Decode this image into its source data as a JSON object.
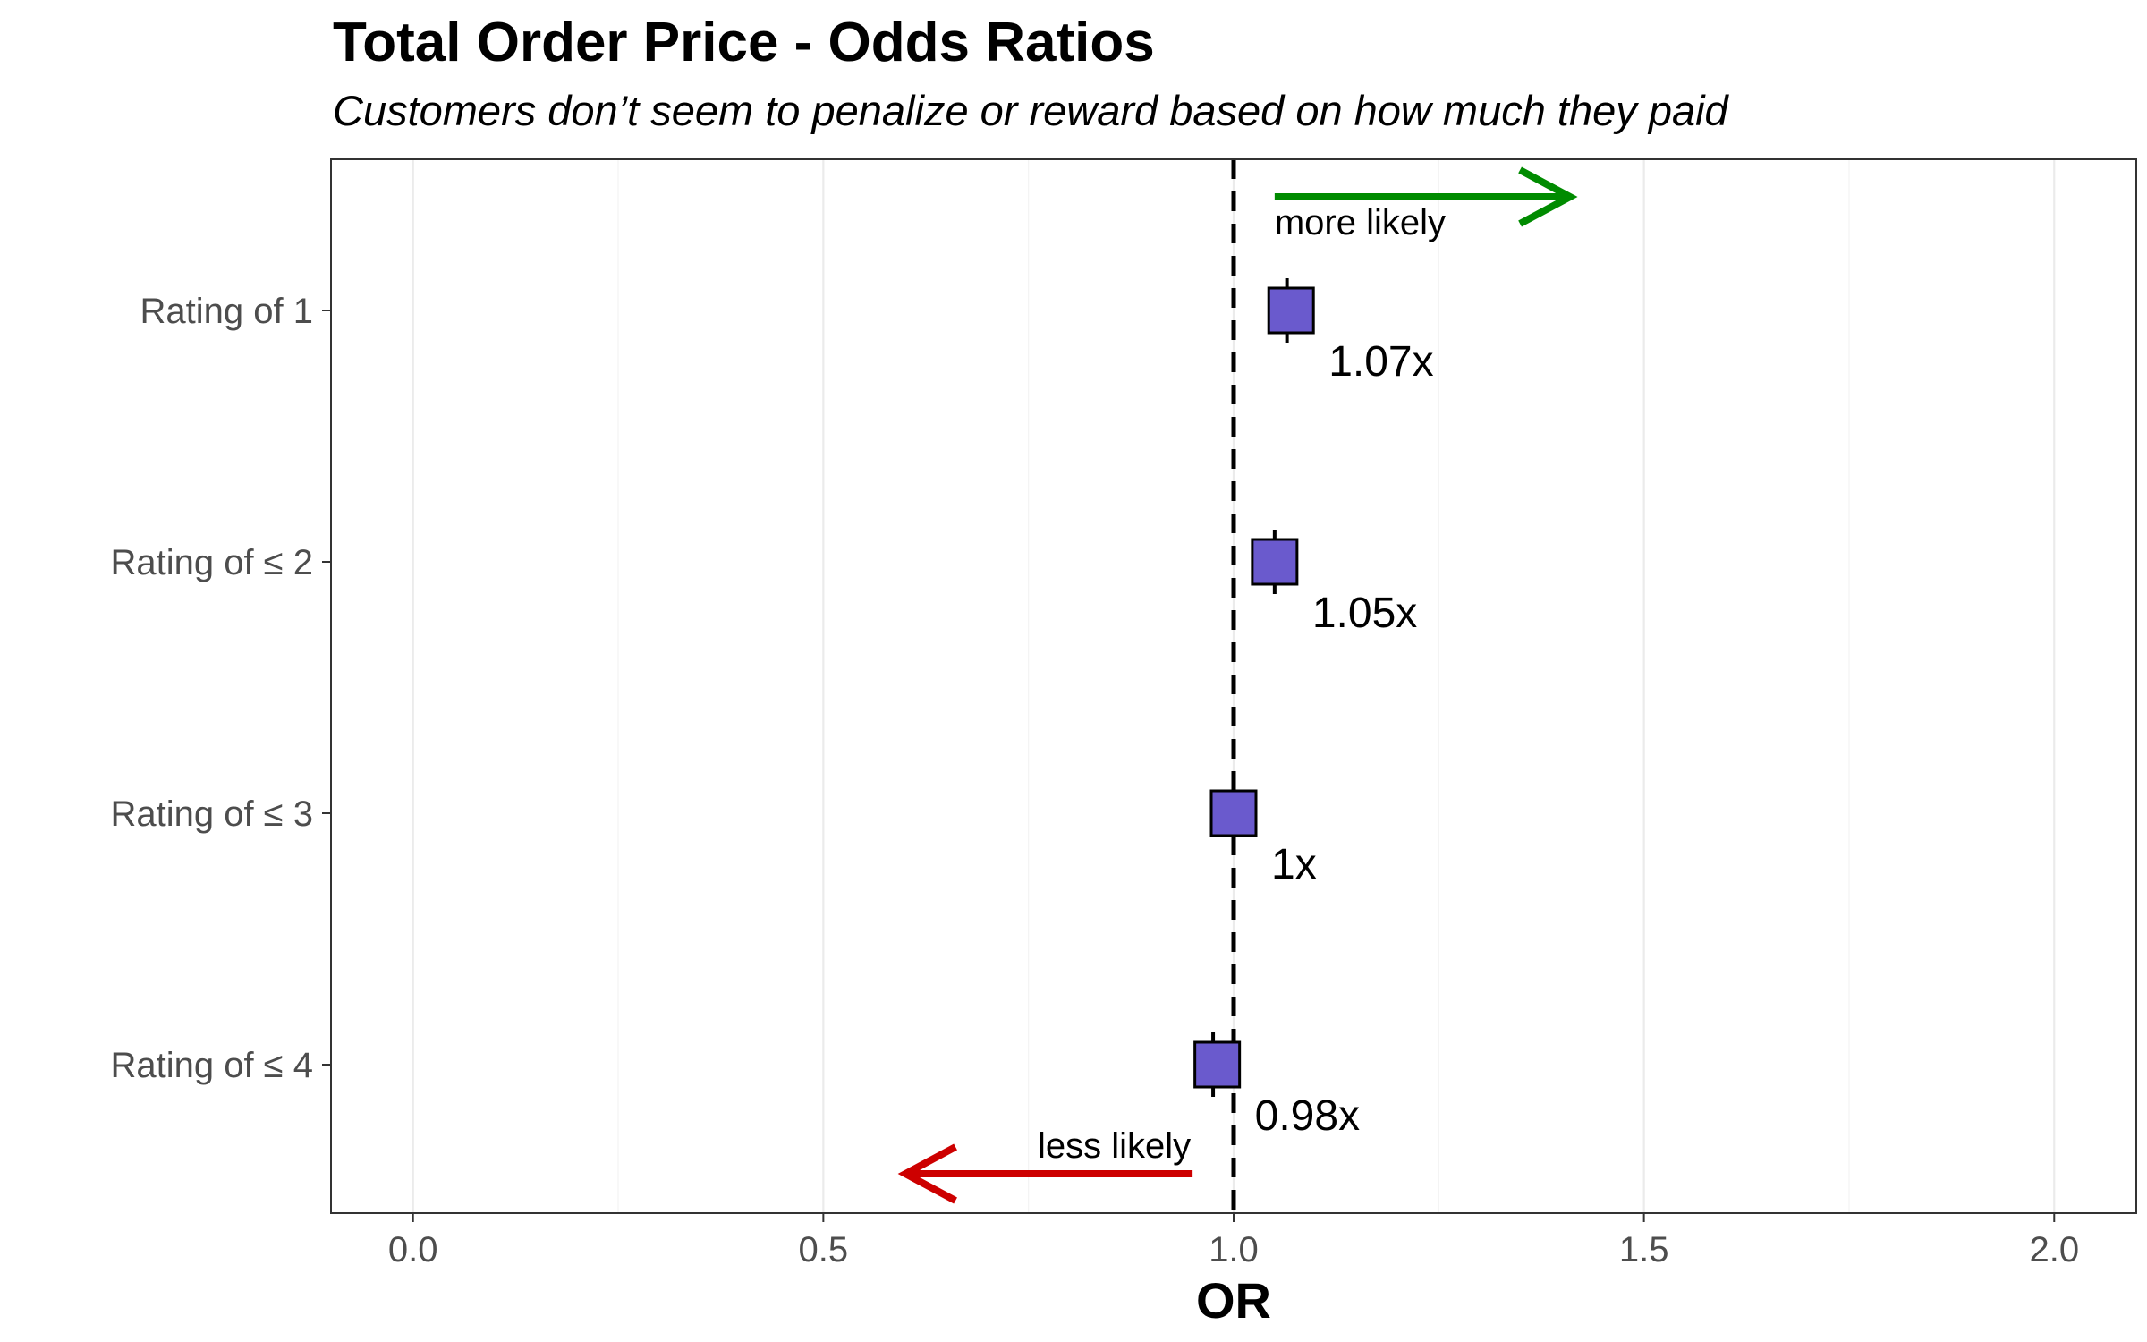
{
  "chart_data": {
    "type": "forest",
    "title": "Total Order Price - Odds Ratios",
    "subtitle": "Customers don’t seem to penalize or reward based on how much they paid",
    "xlabel": "OR",
    "ylabel": "",
    "xlim": [
      -0.1,
      2.1
    ],
    "xticks": [
      0.0,
      0.5,
      1.0,
      1.5,
      2.0
    ],
    "xtick_labels": [
      "0.0",
      "0.5",
      "1.0",
      "1.5",
      "2.0"
    ],
    "reference_line": 1.0,
    "grid": true,
    "point_color": "#6a5acd",
    "categories": [
      "Rating of 1",
      "Rating of ≤ 2",
      "Rating of ≤ 3",
      "Rating of ≤ 4"
    ],
    "values": [
      1.07,
      1.05,
      1.0,
      0.98
    ],
    "ci_low": [
      1.06,
      1.04,
      1.0,
      0.97
    ],
    "ci_high": [
      1.07,
      1.06,
      1.0,
      0.98
    ],
    "data_labels": [
      "1.07x",
      "1.05x",
      "1x",
      "0.98x"
    ],
    "annotations": {
      "more_likely": {
        "text": "more likely",
        "color": "#008b00"
      },
      "less_likely": {
        "text": "less likely",
        "color": "#cd0000"
      }
    }
  }
}
